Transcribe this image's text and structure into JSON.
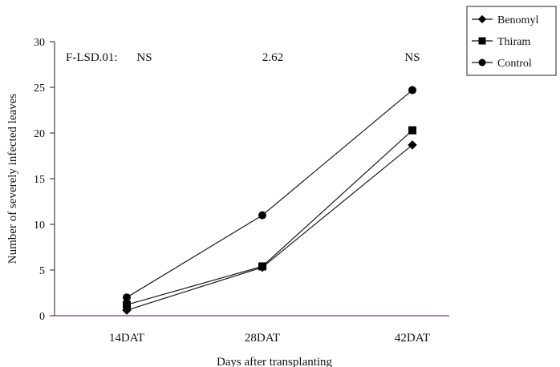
{
  "chart_data": {
    "type": "line",
    "title": "",
    "xlabel": "Days after transplanting",
    "ylabel": "Number of severely infected leaves",
    "categories": [
      "14DAT",
      "28DAT",
      "42DAT"
    ],
    "ylim": [
      0,
      30
    ],
    "yticks": [
      0,
      5,
      10,
      15,
      20,
      25,
      30
    ],
    "grid": false,
    "legend_position": "top-right",
    "series": [
      {
        "name": "Benomyl",
        "marker": "diamond",
        "values": [
          0.6,
          5.3,
          18.7
        ]
      },
      {
        "name": "Thiram",
        "marker": "square",
        "values": [
          1.2,
          5.4,
          20.3
        ]
      },
      {
        "name": "Control",
        "marker": "circle",
        "values": [
          2.0,
          11.0,
          24.7
        ]
      }
    ],
    "annotations": {
      "label": "F-LSD.01:",
      "values": [
        "NS",
        "2.62",
        "NS"
      ]
    },
    "colors": {
      "line": "#1a1a1a",
      "x_axis": "#7a3b6b",
      "marker": "#000000"
    }
  }
}
